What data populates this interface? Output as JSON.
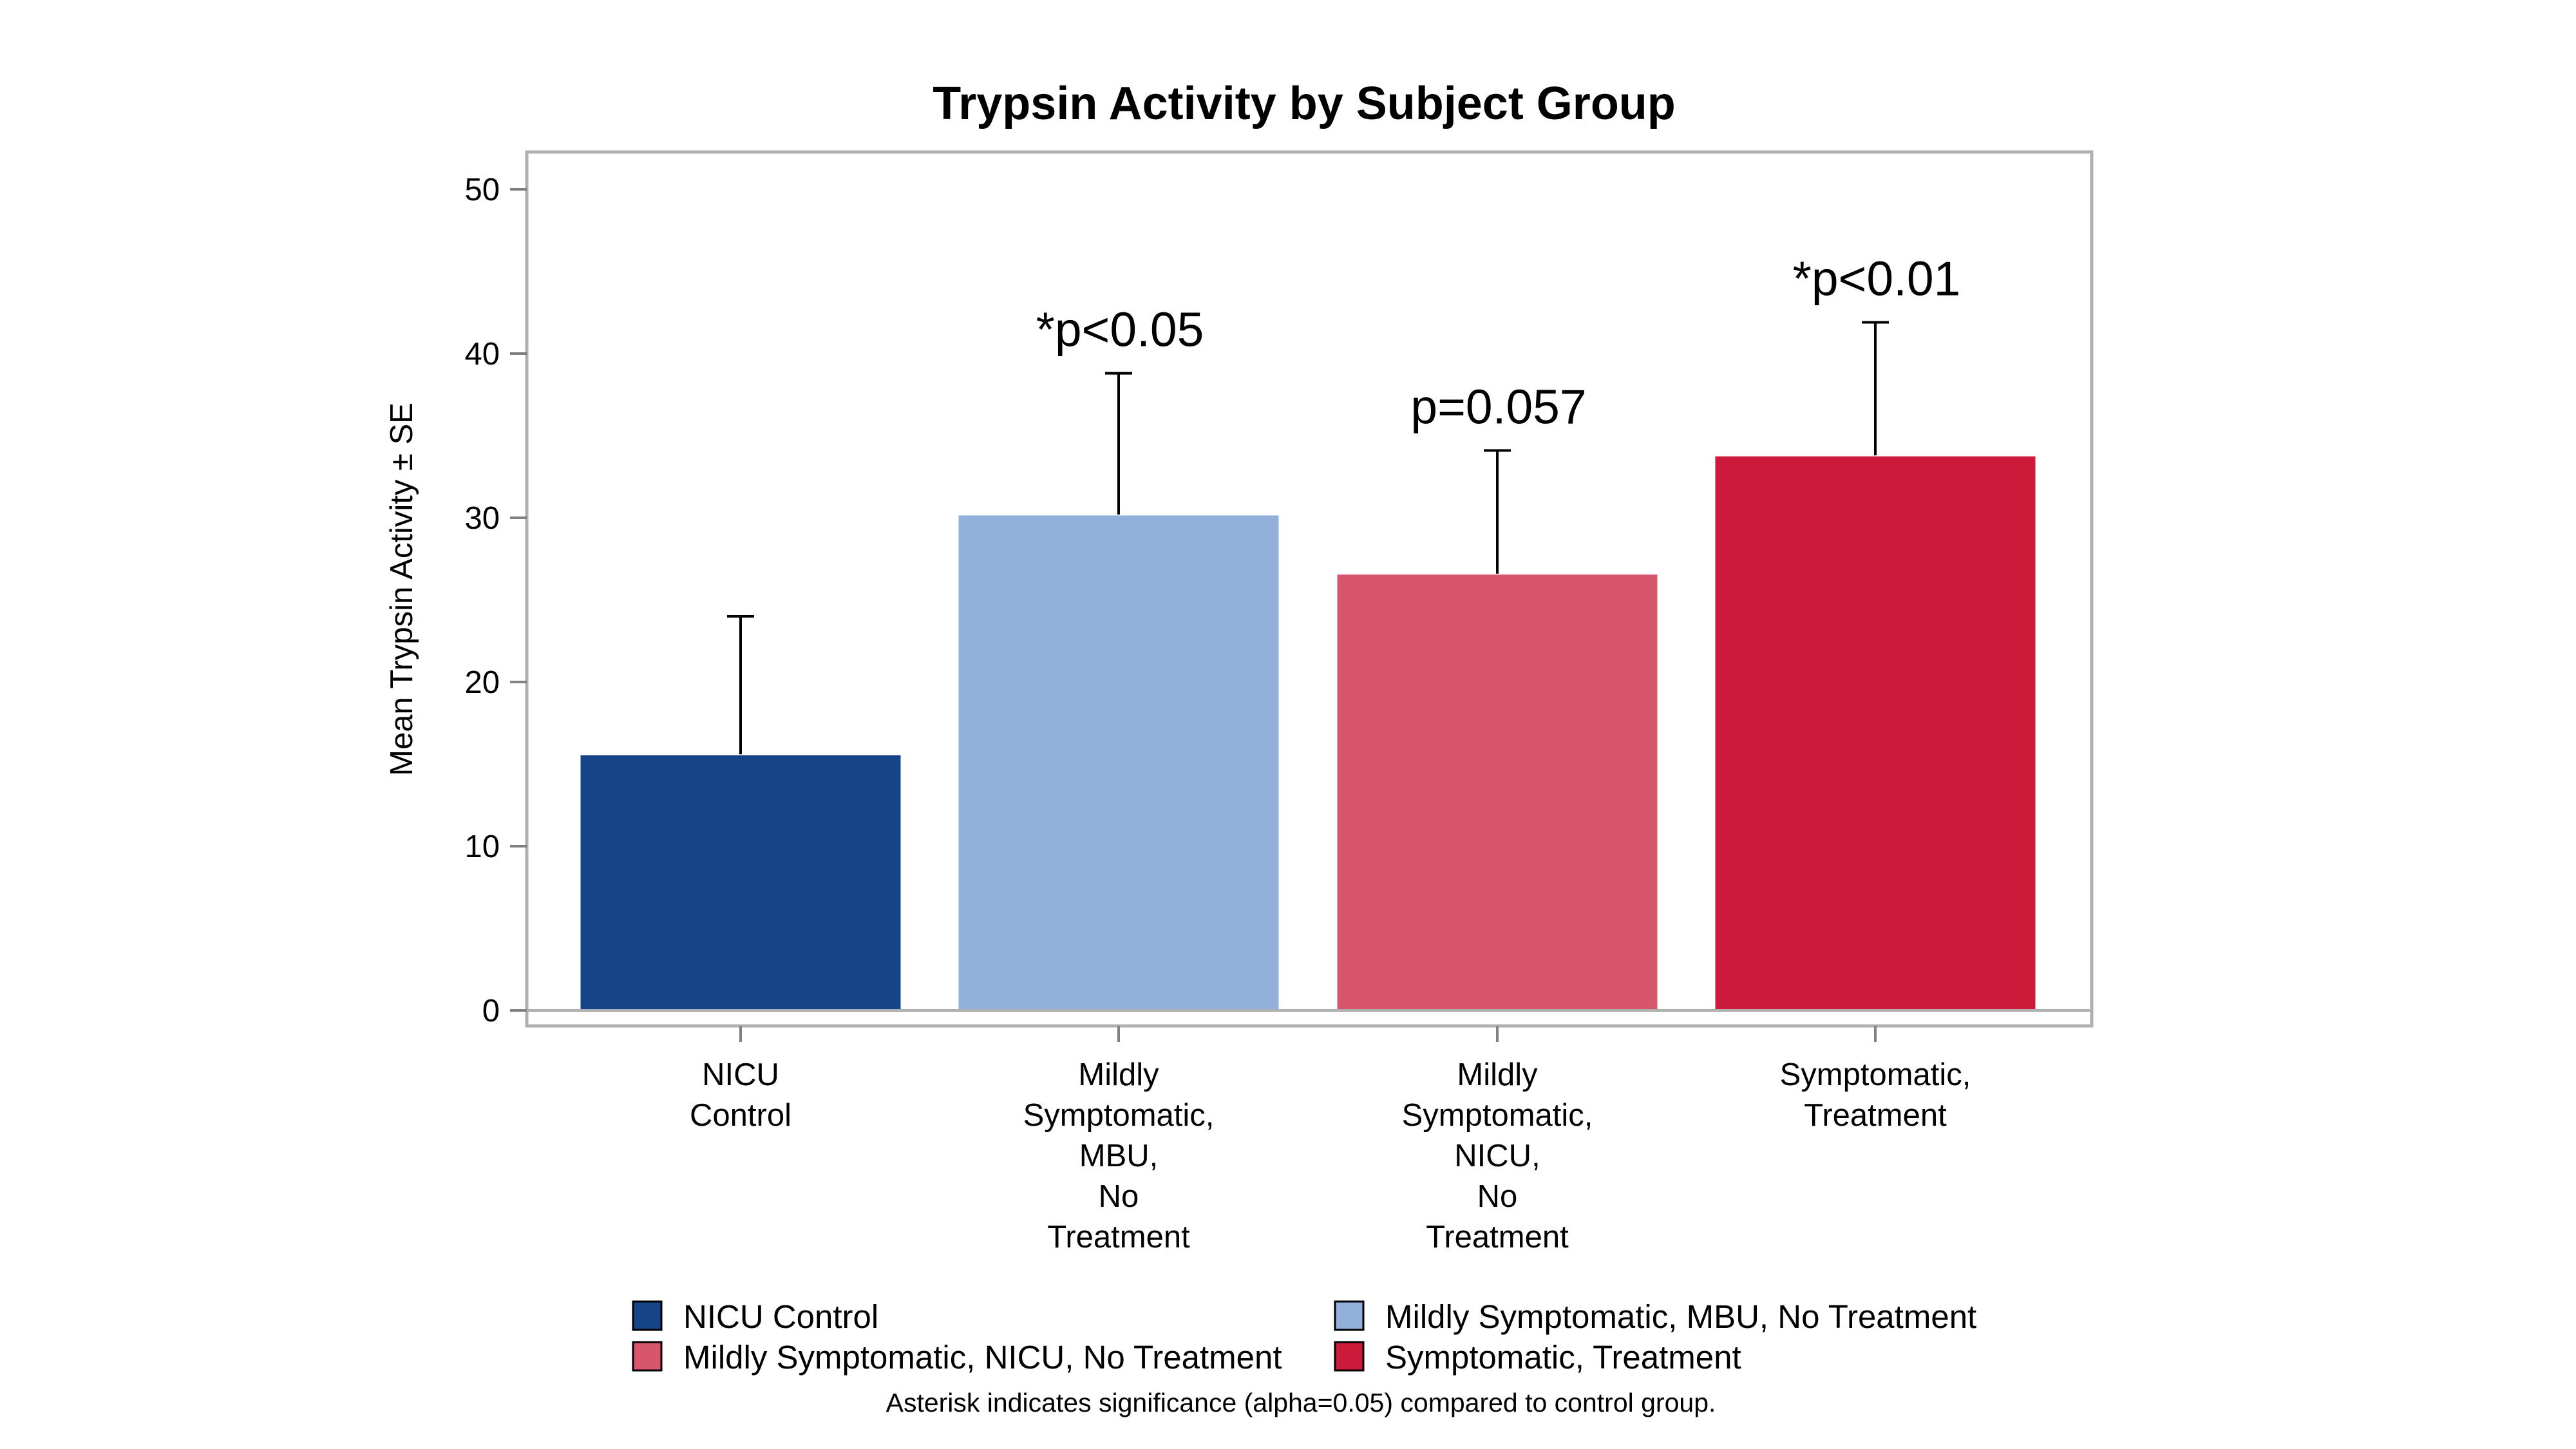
{
  "chart_data": {
    "type": "bar",
    "title": "Trypsin Activity by Subject Group",
    "xlabel": "",
    "ylabel": "Mean Trypsin Activity ± SE",
    "ylim": [
      0,
      52
    ],
    "yticks": [
      0,
      10,
      20,
      30,
      40,
      50
    ],
    "grid": false,
    "legend_position": "bottom",
    "categories": [
      "NICU Control",
      "Mildly Symptomatic, MBU, No Treatment",
      "Mildly Symptomatic, NICU, No Treatment",
      "Symptomatic, Treatment"
    ],
    "category_label_lines": [
      [
        "NICU",
        "Control"
      ],
      [
        "Mildly",
        "Symptomatic,",
        "MBU,",
        "No",
        "Treatment"
      ],
      [
        "Mildly",
        "Symptomatic,",
        "NICU,",
        "No",
        "Treatment"
      ],
      [
        "Symptomatic,",
        "Treatment"
      ]
    ],
    "values": [
      15.6,
      30.2,
      26.6,
      33.8
    ],
    "error_upper": [
      24.0,
      38.8,
      34.1,
      41.9
    ],
    "annotations": [
      "",
      "*p<0.05",
      "p=0.057",
      "*p<0.01"
    ],
    "colors": [
      "#154588",
      "#92b0d9",
      "#d7566b",
      "#cc1a3b"
    ],
    "legend": [
      "NICU Control",
      "Mildly Symptomatic, MBU, No Treatment",
      "Mildly Symptomatic, NICU, No Treatment",
      "Symptomatic, Treatment"
    ],
    "footnote": "Asterisk indicates significance (alpha=0.05) compared to control group."
  }
}
